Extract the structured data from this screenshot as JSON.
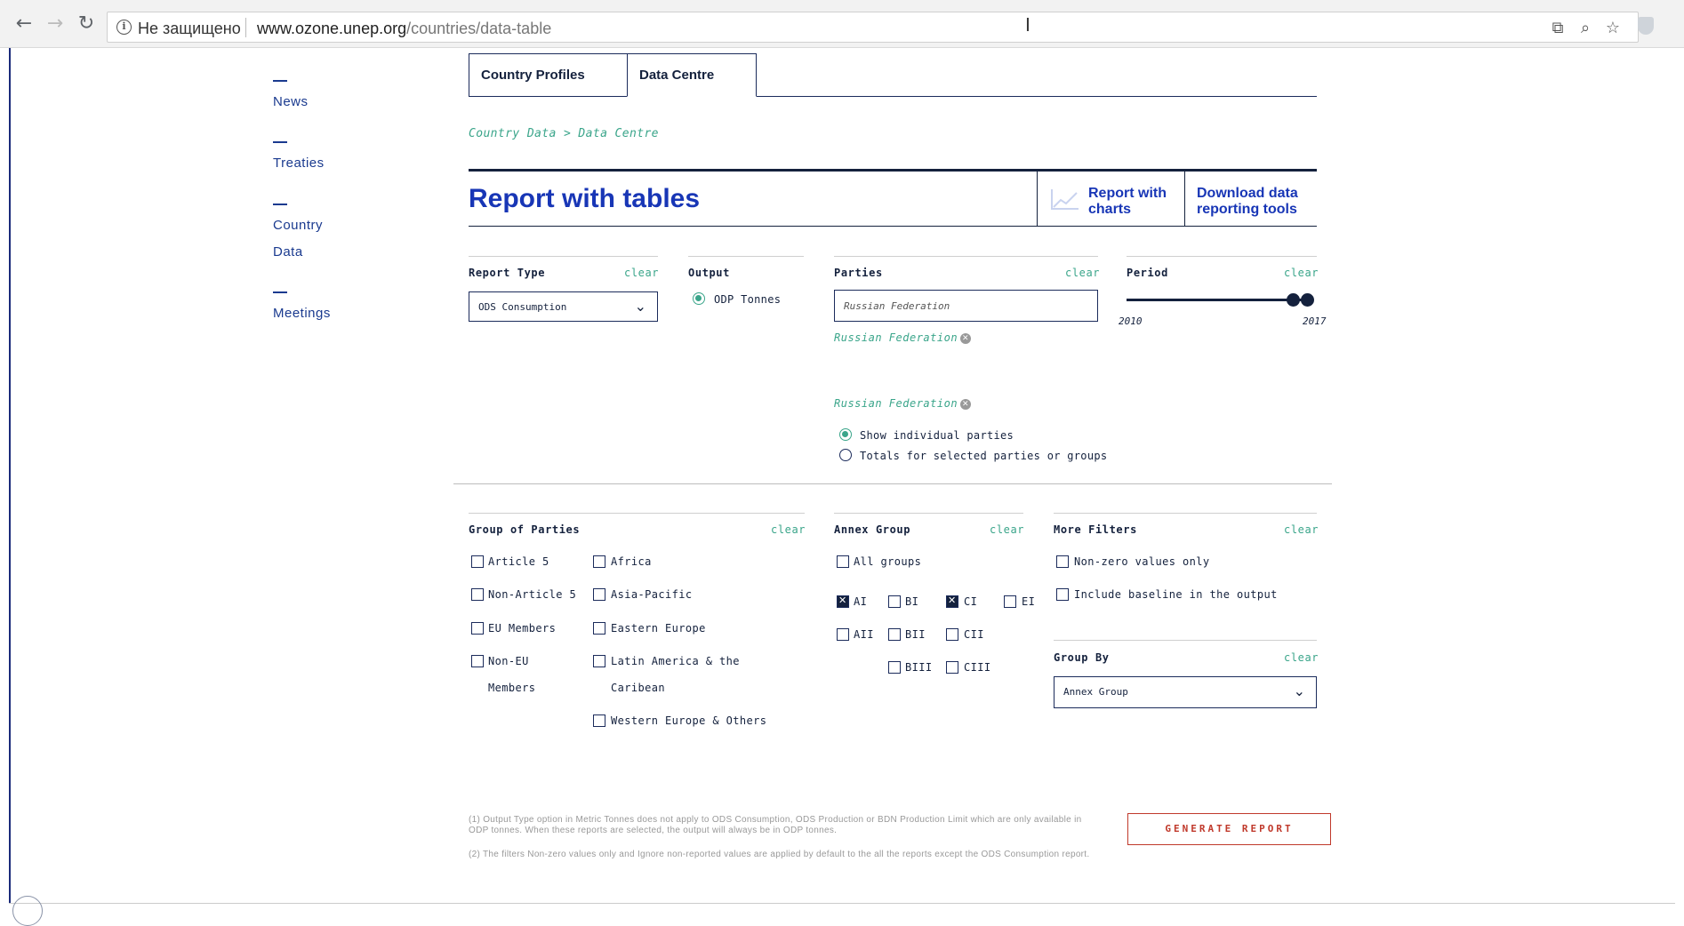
{
  "browser": {
    "security_label": "Не защищено",
    "url_host": "www.ozone.unep.org",
    "url_path": "/countries/data-table"
  },
  "sidenav": {
    "items": [
      {
        "label": "News"
      },
      {
        "label": "Treaties"
      },
      {
        "label": "Country Data"
      },
      {
        "label": "Meetings"
      }
    ]
  },
  "tabs": [
    {
      "label": "Country Profiles"
    },
    {
      "label": "Data Centre"
    }
  ],
  "breadcrumb": "Country Data > Data Centre",
  "header": {
    "title": "Report with tables",
    "charts_link": "Report with charts",
    "download_link": "Download data reporting tools"
  },
  "report_type": {
    "label": "Report Type",
    "clear": "clear",
    "value": "ODS Consumption"
  },
  "output": {
    "label": "Output",
    "option": "ODP Tonnes"
  },
  "parties": {
    "label": "Parties",
    "clear": "clear",
    "input_value": "Russian Federation",
    "tag1": "Russian Federation",
    "tag2": "Russian Federation",
    "show_individual": "Show individual parties",
    "totals": "Totals for selected parties or groups"
  },
  "period": {
    "label": "Period",
    "clear": "clear",
    "min_label": "2010",
    "max_label": "2017",
    "range_min": 2010,
    "range_max": 2017,
    "selected_start": 2016,
    "selected_end": 2017
  },
  "group_of_parties": {
    "label": "Group of Parties",
    "clear": "clear",
    "col1": [
      "Article 5",
      "Non-Article 5",
      "EU Members",
      "Non-EU Members"
    ],
    "col2": [
      "Africa",
      "Asia-Pacific",
      "Eastern Europe",
      "Latin America & the Caribean",
      "Western Europe & Others"
    ]
  },
  "annex_group": {
    "label": "Annex Group",
    "clear": "clear",
    "all": "All groups",
    "items": {
      "AI": "AI",
      "BI": "BI",
      "CI": "CI",
      "EI": "EI",
      "AII": "AII",
      "BII": "BII",
      "CII": "CII",
      "BIII": "BIII",
      "CIII": "CIII"
    }
  },
  "more_filters": {
    "label": "More Filters",
    "clear": "clear",
    "nonzero": "Non-zero values only",
    "baseline": "Include baseline in the output"
  },
  "group_by": {
    "label": "Group By",
    "clear": "clear",
    "value": "Annex Group"
  },
  "notes": {
    "note1": "(1) Output Type option in Metric Tonnes does not apply to ODS Consumption, ODS Production or BDN Production Limit which are only available in ODP tonnes. When these reports are selected, the output will always be in ODP tonnes.",
    "note2": "(2) The filters Non-zero values only and Ignore non-reported values are applied by default to the all the reports except the ODS Consumption report."
  },
  "generate_button": "GENERATE REPORT"
}
